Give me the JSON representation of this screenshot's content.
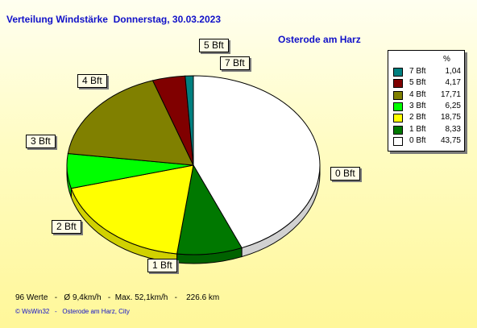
{
  "title": "Verteilung Windstärke  Donnerstag, 30.03.2023",
  "station": "Osterode am Harz",
  "chart_data": {
    "type": "pie",
    "title": "Verteilung Windstärke  Donnerstag, 30.03.2023",
    "unit": "%",
    "slices": [
      {
        "label": "0 Bft",
        "value": 43.75,
        "color": "#ffffff"
      },
      {
        "label": "1 Bft",
        "value": 8.33,
        "color": "#007800"
      },
      {
        "label": "2 Bft",
        "value": 18.75,
        "color": "#ffff00"
      },
      {
        "label": "3 Bft",
        "value": 6.25,
        "color": "#00ff00"
      },
      {
        "label": "4 Bft",
        "value": 17.71,
        "color": "#808000"
      },
      {
        "label": "5 Bft",
        "value": 4.17,
        "color": "#800000"
      },
      {
        "label": "7 Bft",
        "value": 1.04,
        "color": "#008080"
      }
    ],
    "legend": {
      "position": "right",
      "unit": "%",
      "entries": [
        {
          "label": "7 Bft",
          "value": "1,04",
          "color": "#008080"
        },
        {
          "label": "5 Bft",
          "value": "4,17",
          "color": "#800000"
        },
        {
          "label": "4 Bft",
          "value": "17,71",
          "color": "#808000"
        },
        {
          "label": "3 Bft",
          "value": "6,25",
          "color": "#00ff00"
        },
        {
          "label": "2 Bft",
          "value": "18,75",
          "color": "#ffff00"
        },
        {
          "label": "1 Bft",
          "value": "8,33",
          "color": "#007800"
        },
        {
          "label": "0 Bft",
          "value": "43,75",
          "color": "#ffffff"
        }
      ]
    }
  },
  "stats": "96 Werte   -   Ø 9,4km/h   -  Max. 52,1km/h   -    226.6 km",
  "footer": "© WsWin32   -   Osterode am Harz, City"
}
